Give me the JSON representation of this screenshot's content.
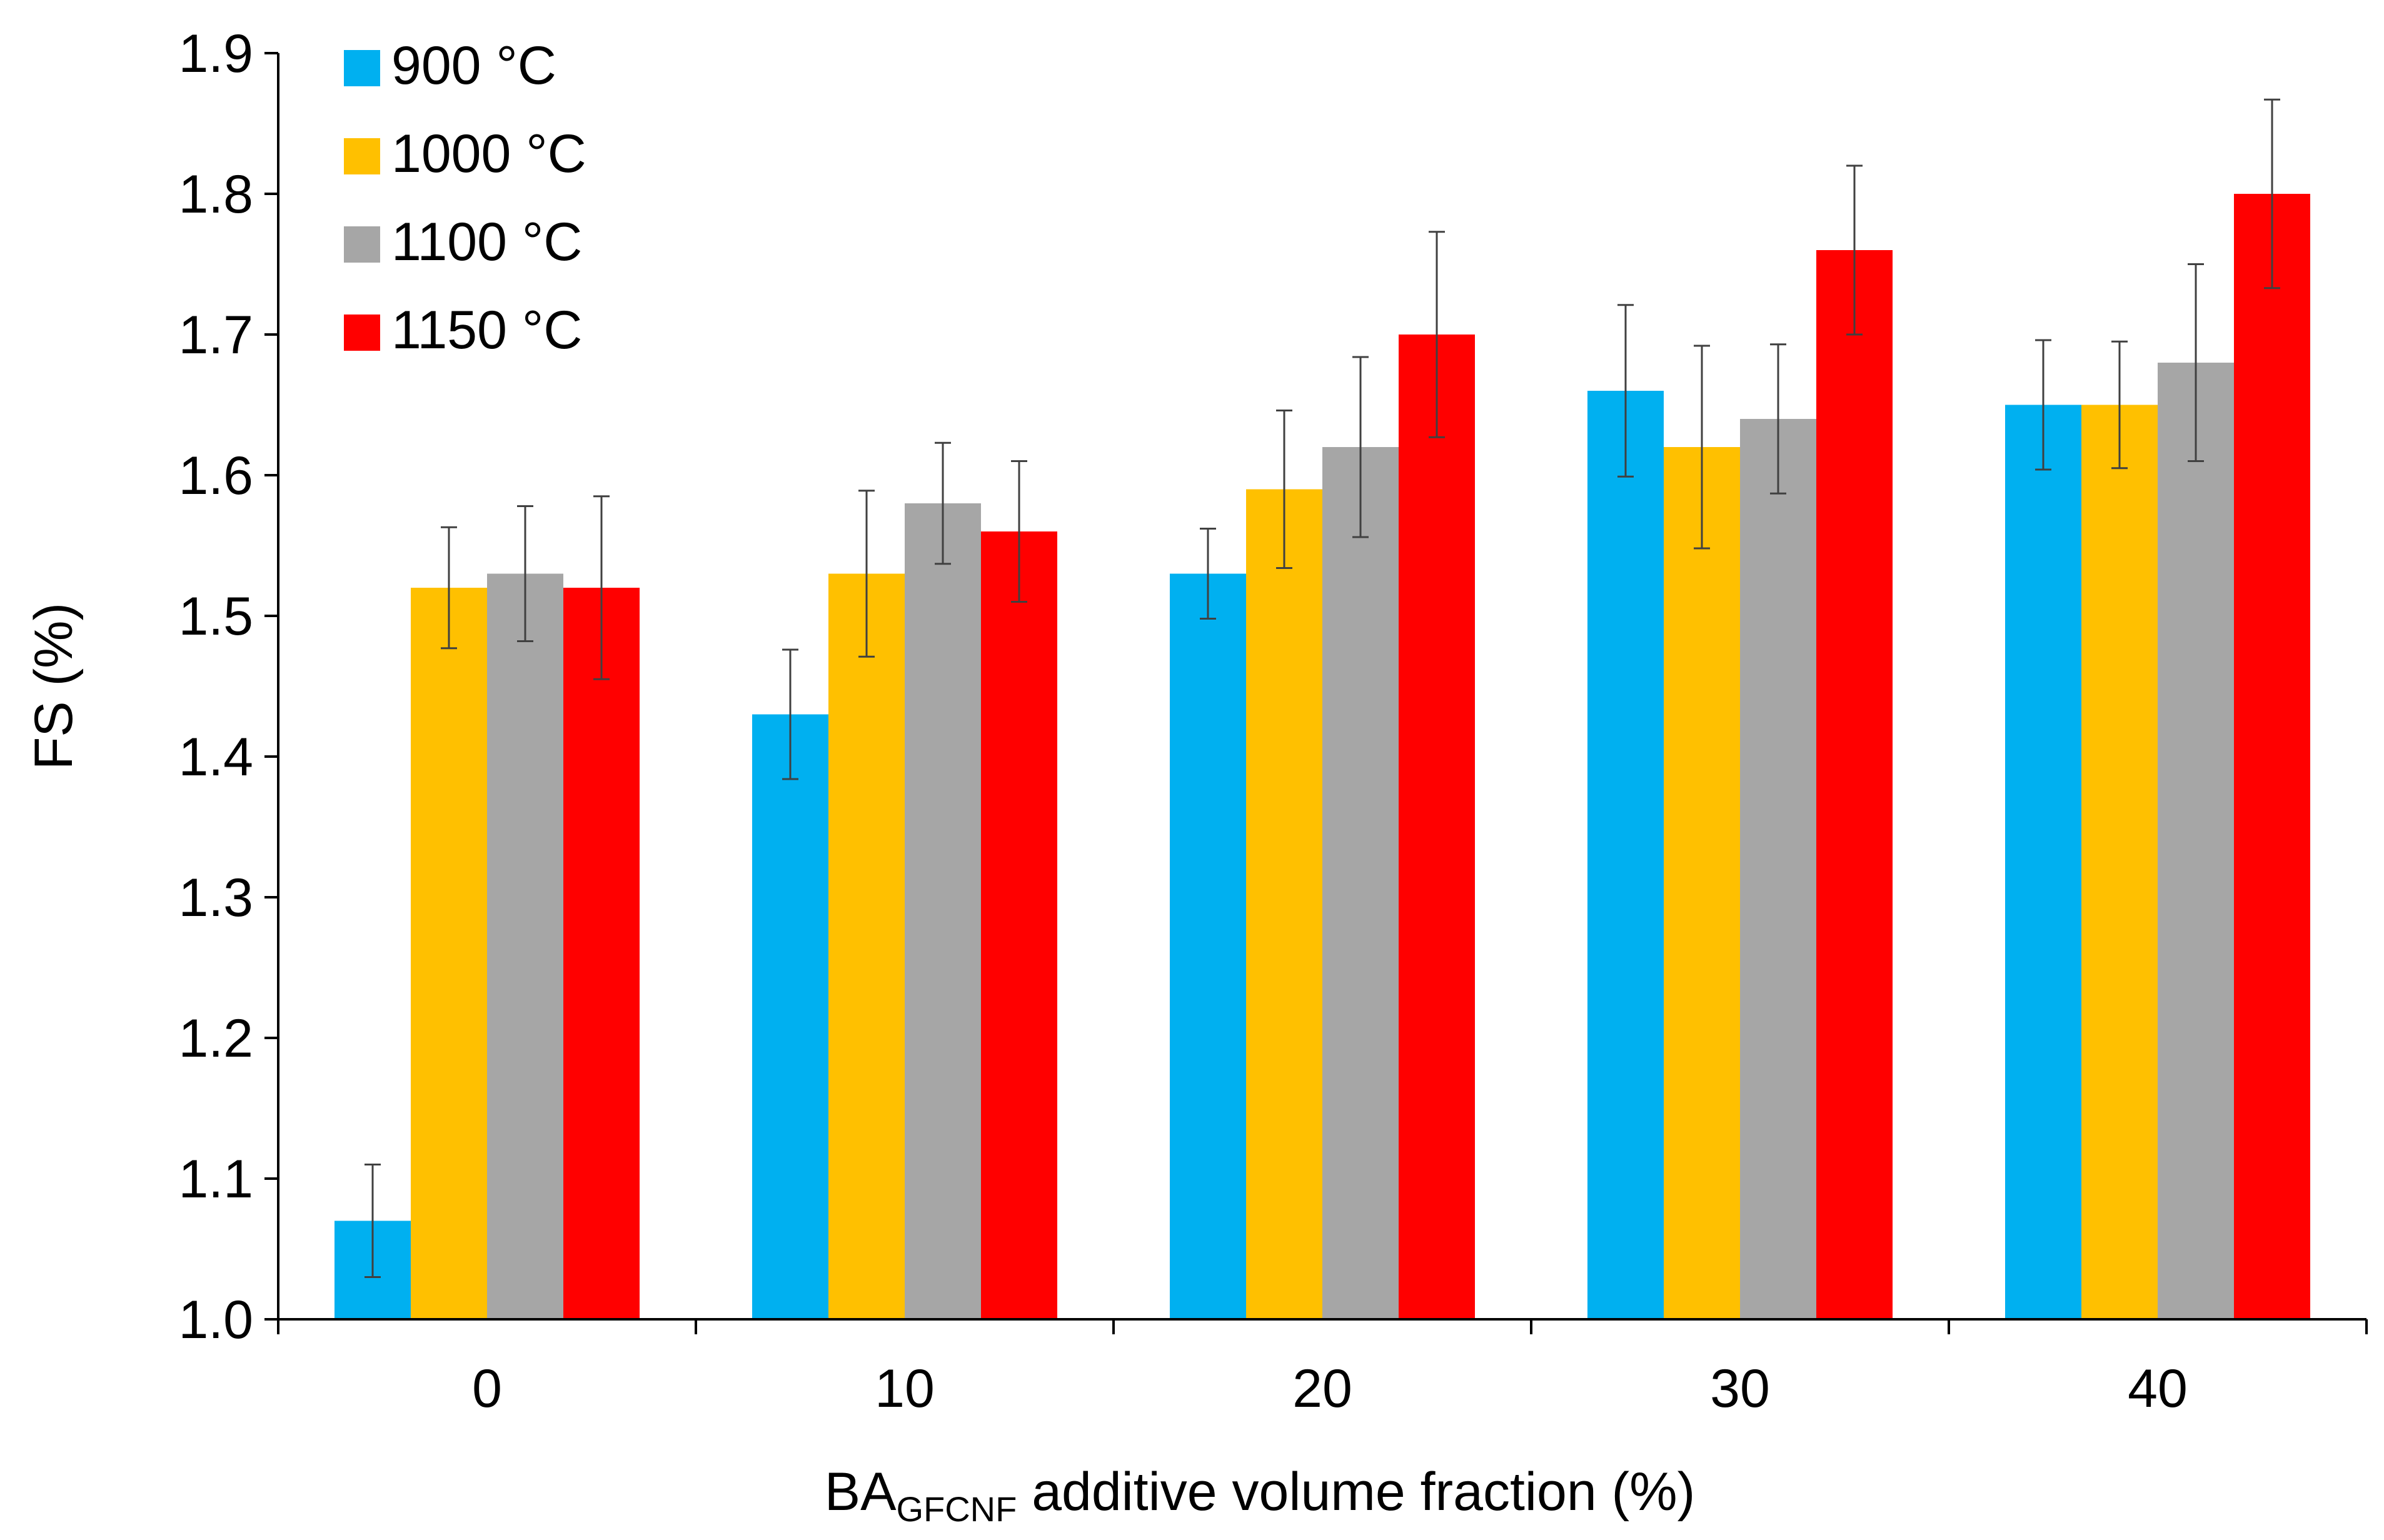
{
  "chart_data": {
    "type": "bar",
    "title": "",
    "xlabel_main": "BA",
    "xlabel_sub": "GFCNF",
    "xlabel_rest": " additive volume fraction (%)",
    "ylabel": "FS (%)",
    "ylim": [
      1.0,
      1.9
    ],
    "yticks": [
      "1.0",
      "1.1",
      "1.2",
      "1.3",
      "1.4",
      "1.5",
      "1.6",
      "1.7",
      "1.8",
      "1.9"
    ],
    "categories": [
      "0",
      "10",
      "20",
      "30",
      "40"
    ],
    "legend_position": "top-left",
    "grid": false,
    "series": [
      {
        "name": "900 °C",
        "color": "#00B0F0",
        "values": [
          1.07,
          1.43,
          1.53,
          1.66,
          1.65
        ],
        "errors": [
          0.04,
          0.046,
          0.032,
          0.061,
          0.046
        ]
      },
      {
        "name": "1000 °C",
        "color": "#FFC000",
        "values": [
          1.52,
          1.53,
          1.59,
          1.62,
          1.65
        ],
        "errors": [
          0.043,
          0.059,
          0.056,
          0.072,
          0.045
        ]
      },
      {
        "name": "1100 °C",
        "color": "#A6A6A6",
        "values": [
          1.53,
          1.58,
          1.62,
          1.64,
          1.68
        ],
        "errors": [
          0.048,
          0.043,
          0.064,
          0.053,
          0.07
        ]
      },
      {
        "name": "1150 °C",
        "color": "#FF0000",
        "values": [
          1.52,
          1.56,
          1.7,
          1.76,
          1.8
        ],
        "errors": [
          0.065,
          0.05,
          0.073,
          0.06,
          0.067
        ]
      }
    ]
  }
}
